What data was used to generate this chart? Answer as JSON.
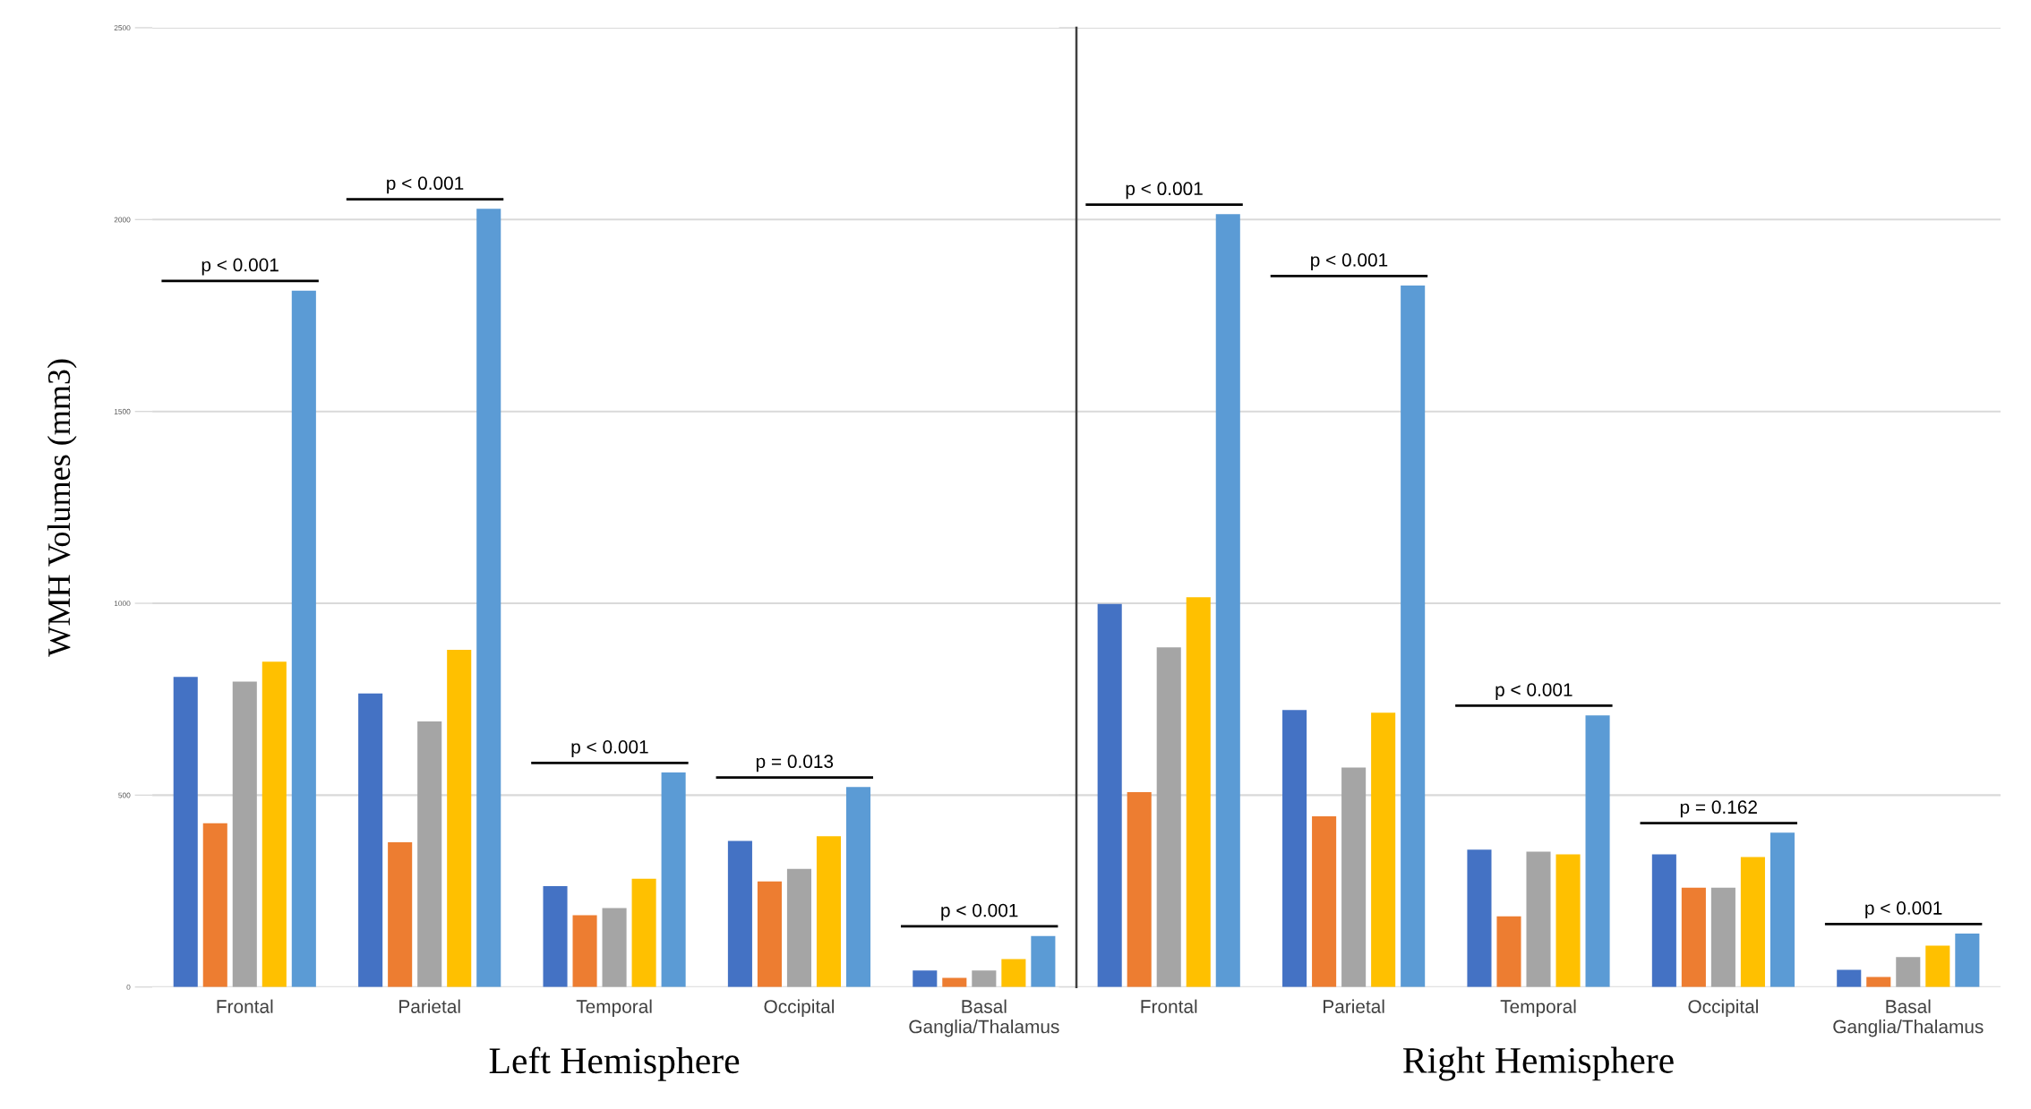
{
  "chart_data": [
    {
      "type": "bar",
      "xlabel": "Left Hemisphere",
      "ylabel": "WMH Volumes (mm3)",
      "categories": [
        "Frontal",
        "Parietal",
        "Temporal",
        "Occipital",
        "Basal\nGanglia/Thalamus"
      ],
      "series": [
        {
          "color": "#4472c4",
          "values": [
            808,
            765,
            263,
            381,
            43
          ]
        },
        {
          "color": "#ed7d31",
          "values": [
            427,
            377,
            187,
            275,
            24
          ]
        },
        {
          "color": "#a5a5a5",
          "values": [
            796,
            692,
            206,
            308,
            43
          ]
        },
        {
          "color": "#ffc000",
          "values": [
            848,
            879,
            282,
            393,
            73
          ]
        },
        {
          "color": "#5b9bd5",
          "values": [
            1815,
            2028,
            559,
            521,
            133
          ]
        }
      ],
      "ylim": [
        0,
        2500
      ],
      "yticks": [
        0,
        500,
        1000,
        1500,
        2000,
        2500
      ],
      "grid": "y",
      "annotations": [
        "p < 0.001",
        "p < 0.001",
        "p < 0.001",
        "p = 0.013",
        "p < 0.001"
      ]
    },
    {
      "type": "bar",
      "xlabel": "Right Hemisphere",
      "categories": [
        "Frontal",
        "Parietal",
        "Temporal",
        "Occipital",
        "Basal\nGanglia/Thalamus"
      ],
      "series": [
        {
          "color": "#4472c4",
          "values": [
            998,
            722,
            358,
            346,
            45
          ]
        },
        {
          "color": "#ed7d31",
          "values": [
            508,
            445,
            184,
            259,
            26
          ]
        },
        {
          "color": "#a5a5a5",
          "values": [
            885,
            572,
            353,
            259,
            78
          ]
        },
        {
          "color": "#ffc000",
          "values": [
            1016,
            715,
            346,
            339,
            108
          ]
        },
        {
          "color": "#5b9bd5",
          "values": [
            2014,
            1828,
            708,
            402,
            139
          ]
        }
      ],
      "ylim": [
        0,
        2500
      ],
      "yticks": [
        0,
        500,
        1000,
        1500,
        2000,
        2500
      ],
      "grid": "y",
      "tick_labels": "x",
      "annotations": [
        "p < 0.001",
        "p < 0.001",
        "p < 0.001",
        "p = 0.162",
        "p < 0.001"
      ]
    }
  ]
}
